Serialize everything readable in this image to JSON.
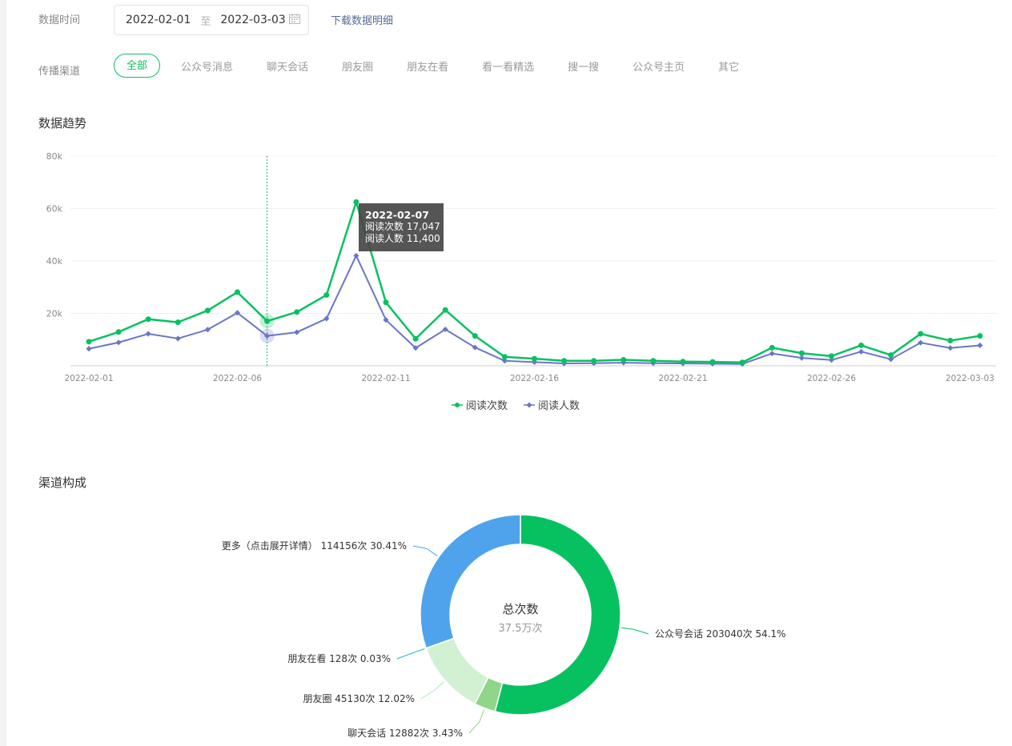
{
  "filters": {
    "date_label": "数据时间",
    "start_date": "2022-02-01",
    "separator": "至",
    "end_date": "2022-03-03",
    "download_label": "下载数据明细",
    "channel_label": "传播渠道",
    "channels": [
      "全部",
      "公众号消息",
      "聊天会话",
      "朋友圈",
      "朋友在看",
      "看一看精选",
      "搜一搜",
      "公众号主页",
      "其它"
    ],
    "active_channel": "全部"
  },
  "trend": {
    "title": "数据趋势",
    "tooltip": {
      "date": "2022-02-07",
      "line1": "阅读次数 17,047",
      "line2": "阅读人数 11,400"
    }
  },
  "composition": {
    "title": "渠道构成",
    "center_label": "总次数",
    "center_value": "37.5万次"
  },
  "colors": {
    "green": "#07c160",
    "purple": "#6a75c9",
    "blue": "#4fa3ec",
    "light_green": "#8fd68a",
    "pale_green": "#d2f0d2"
  },
  "chart_data": [
    {
      "type": "line",
      "x": [
        "2022-02-01",
        "2022-02-02",
        "2022-02-03",
        "2022-02-04",
        "2022-02-05",
        "2022-02-06",
        "2022-02-07",
        "2022-02-08",
        "2022-02-09",
        "2022-02-10",
        "2022-02-11",
        "2022-02-12",
        "2022-02-13",
        "2022-02-14",
        "2022-02-15",
        "2022-02-16",
        "2022-02-17",
        "2022-02-18",
        "2022-02-19",
        "2022-02-20",
        "2022-02-21",
        "2022-02-22",
        "2022-02-23",
        "2022-02-24",
        "2022-02-25",
        "2022-02-26",
        "2022-02-27",
        "2022-02-28",
        "2022-03-01",
        "2022-03-02",
        "2022-03-03"
      ],
      "x_ticks": [
        "2022-02-01",
        "2022-02-06",
        "2022-02-11",
        "2022-02-16",
        "2022-02-21",
        "2022-02-26",
        "2022-03-03"
      ],
      "y_ticks": [
        "20k",
        "40k",
        "60k",
        "80k"
      ],
      "ylim": [
        0,
        80000
      ],
      "grid": true,
      "legend_position": "bottom",
      "series": [
        {
          "name": "阅读次数",
          "color": "#07c160",
          "values": [
            9200,
            12900,
            17800,
            16600,
            21100,
            28100,
            17047,
            20500,
            27000,
            62500,
            24200,
            10300,
            21300,
            11400,
            3400,
            2700,
            1900,
            1900,
            2300,
            1900,
            1600,
            1500,
            1300,
            6900,
            4800,
            3700,
            7800,
            4100,
            12200,
            9600,
            11400
          ]
        },
        {
          "name": "阅读人数",
          "color": "#6a75c9",
          "values": [
            6500,
            8900,
            12200,
            10400,
            13800,
            20200,
            11400,
            12800,
            18000,
            42000,
            17500,
            6800,
            13900,
            7000,
            1900,
            1400,
            900,
            1000,
            1200,
            1000,
            900,
            800,
            700,
            4700,
            3000,
            2200,
            5400,
            2500,
            8800,
            6800,
            7800
          ]
        }
      ]
    },
    {
      "type": "pie",
      "donut": true,
      "slices": [
        {
          "label": "公众号会话",
          "value": 203040,
          "display": "公众号会话 203040次 54.1%",
          "percent": 54.1,
          "color": "#07c160"
        },
        {
          "label": "聊天会话",
          "value": 12882,
          "display": "聊天会话 12882次 3.43%",
          "percent": 3.43,
          "color": "#8fd68a"
        },
        {
          "label": "朋友圈",
          "value": 45130,
          "display": "朋友圈 45130次 12.02%",
          "percent": 12.02,
          "color": "#d2f0d2"
        },
        {
          "label": "朋友在看",
          "value": 128,
          "display": "朋友在看 128次 0.03%",
          "percent": 0.03,
          "color": "#2ab3c4"
        },
        {
          "label": "更多（点击展开详情）",
          "value": 114156,
          "display": "更多（点击展开详情） 114156次 30.41%",
          "percent": 30.41,
          "color": "#4fa3ec"
        }
      ]
    }
  ]
}
